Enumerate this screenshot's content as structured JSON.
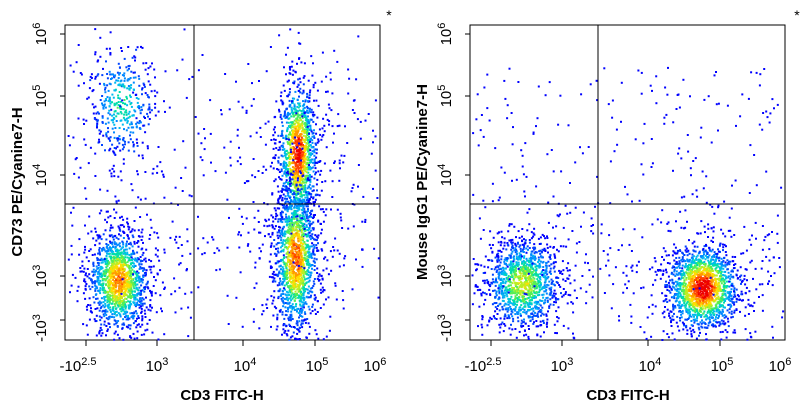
{
  "chart_data": [
    {
      "type": "scatter",
      "subtype": "flow-cytometry-density-dot-plot",
      "xlabel": "CD3 FITC-H",
      "ylabel": "CD73 PE/Cyanine7-H",
      "marker": "*",
      "x_ticks": [
        {
          "base": "-10",
          "exp": "2.5"
        },
        {
          "base": "10",
          "exp": "3"
        },
        {
          "base": "10",
          "exp": "4"
        },
        {
          "base": "10",
          "exp": "5"
        },
        {
          "base": "10",
          "exp": "6"
        }
      ],
      "y_ticks": [
        {
          "base": "-10",
          "exp": "3"
        },
        {
          "base": "10",
          "exp": "3"
        },
        {
          "base": "10",
          "exp": "4"
        },
        {
          "base": "10",
          "exp": "5"
        },
        {
          "base": "10",
          "exp": "6"
        }
      ],
      "x_gate": 2600,
      "y_gate": 5000,
      "populations": [
        {
          "name": "CD3- CD73-",
          "x_center": 300,
          "y_center": 900,
          "density": "high"
        },
        {
          "name": "CD3- CD73+",
          "x_center": 300,
          "y_center": 50000,
          "density": "low"
        },
        {
          "name": "CD3+ CD73+",
          "x_center": 55000,
          "y_center": 15000,
          "density": "high"
        },
        {
          "name": "CD3+ CD73-",
          "x_center": 55000,
          "y_center": 1200,
          "density": "high"
        }
      ]
    },
    {
      "type": "scatter",
      "subtype": "flow-cytometry-density-dot-plot",
      "xlabel": "CD3 FITC-H",
      "ylabel": "Mouse IgG1 PE/Cyanine7-H",
      "marker": "*",
      "x_ticks": [
        {
          "base": "-10",
          "exp": "2.5"
        },
        {
          "base": "10",
          "exp": "3"
        },
        {
          "base": "10",
          "exp": "4"
        },
        {
          "base": "10",
          "exp": "5"
        },
        {
          "base": "10",
          "exp": "6"
        }
      ],
      "y_ticks": [
        {
          "base": "-10",
          "exp": "3"
        },
        {
          "base": "10",
          "exp": "3"
        },
        {
          "base": "10",
          "exp": "4"
        },
        {
          "base": "10",
          "exp": "5"
        },
        {
          "base": "10",
          "exp": "6"
        }
      ],
      "x_gate": 2600,
      "y_gate": 5000,
      "populations": [
        {
          "name": "CD3- isotype",
          "x_center": 300,
          "y_center": 850,
          "density": "high"
        },
        {
          "name": "CD3+ isotype",
          "x_center": 55000,
          "y_center": 800,
          "density": "high"
        }
      ]
    }
  ]
}
